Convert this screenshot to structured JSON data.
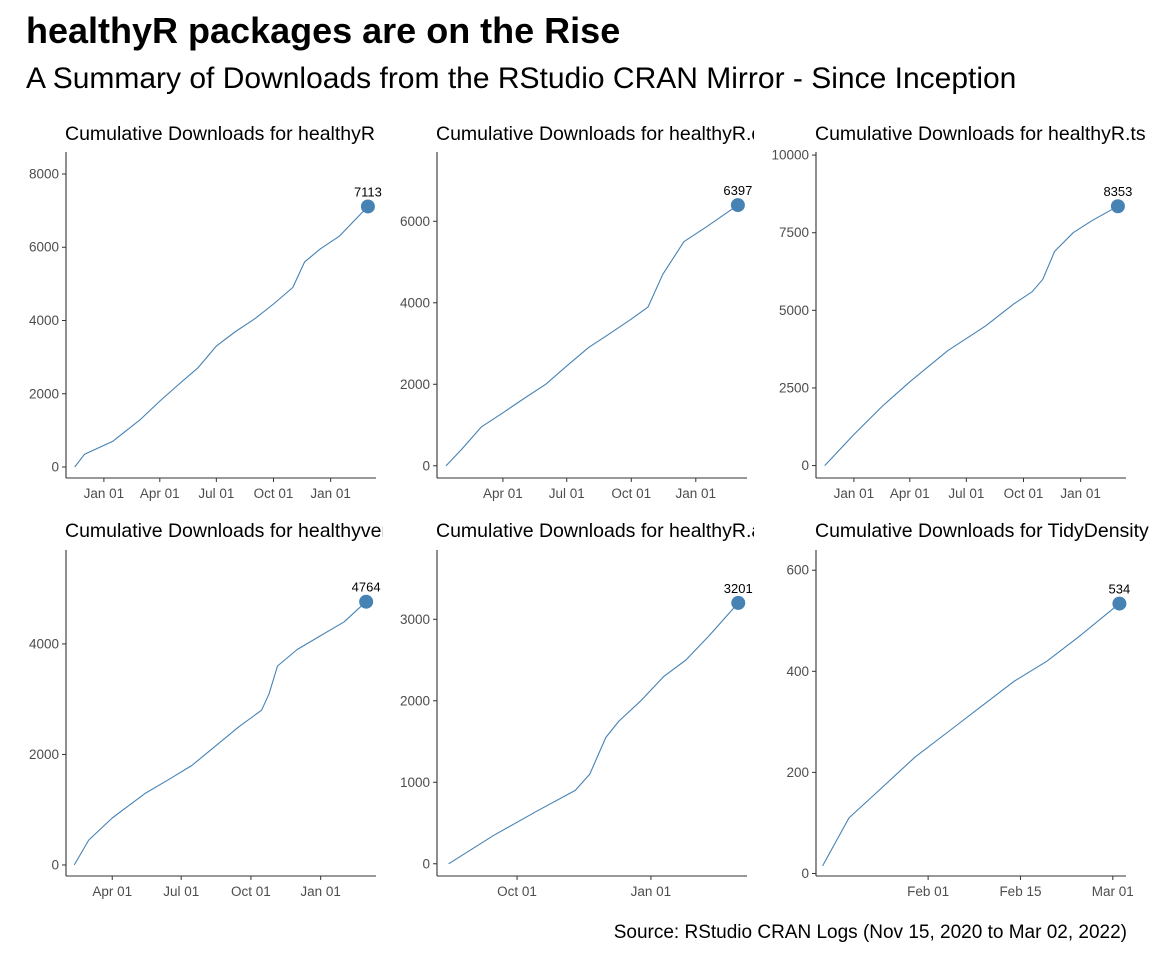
{
  "title": "healthyR packages are on the Rise",
  "subtitle": "A Summary of Downloads from the RStudio CRAN Mirror - Since Inception",
  "caption": "Source: RStudio CRAN Logs (Nov 15, 2020 to Mar 02, 2022)",
  "colors": {
    "line": "#4682b4",
    "point": "#4682b4",
    "axis": "#333333",
    "tick_text": "#4d4d4d"
  },
  "chart_data": [
    {
      "type": "line",
      "title": "Cumulative Downloads for healthyR",
      "x": [
        "2020-11-15",
        "2020-12-01",
        "2021-01-15",
        "2021-03-01",
        "2021-04-01",
        "2021-05-01",
        "2021-06-01",
        "2021-07-01",
        "2021-08-01",
        "2021-09-01",
        "2021-10-01",
        "2021-11-01",
        "2021-11-20",
        "2021-12-15",
        "2022-01-15",
        "2022-03-02"
      ],
      "y": [
        0,
        350,
        700,
        1300,
        1800,
        2250,
        2700,
        3300,
        3700,
        4050,
        4450,
        4900,
        5600,
        5950,
        6300,
        7113
      ],
      "xlim": [
        "2020-11-01",
        "2022-03-15"
      ],
      "xticks": [
        "2021-01-01",
        "2021-04-01",
        "2021-07-01",
        "2021-10-01",
        "2022-01-01"
      ],
      "xtick_labels": [
        "Jan 01",
        "Apr 01",
        "Jul 01",
        "Oct 01",
        "Jan 01"
      ],
      "ylim": [
        -300,
        8600
      ],
      "yticks": [
        0,
        2000,
        4000,
        6000,
        8000
      ],
      "end_label": "7113"
    },
    {
      "type": "line",
      "title": "Cumulative Downloads for healthyR.data",
      "x": [
        "2021-01-10",
        "2021-02-01",
        "2021-03-01",
        "2021-04-01",
        "2021-05-01",
        "2021-06-01",
        "2021-07-01",
        "2021-08-01",
        "2021-09-01",
        "2021-10-01",
        "2021-10-25",
        "2021-11-15",
        "2021-12-15",
        "2022-01-15",
        "2022-03-02"
      ],
      "y": [
        0,
        400,
        950,
        1300,
        1650,
        2000,
        2450,
        2900,
        3250,
        3600,
        3900,
        4700,
        5500,
        5850,
        6397
      ],
      "xlim": [
        "2020-12-28",
        "2022-03-15"
      ],
      "xticks": [
        "2021-04-01",
        "2021-07-01",
        "2021-10-01",
        "2022-01-01"
      ],
      "xtick_labels": [
        "Apr 01",
        "Jul 01",
        "Oct 01",
        "Jan 01"
      ],
      "ylim": [
        -300,
        7700
      ],
      "yticks": [
        0,
        2000,
        4000,
        6000
      ],
      "end_label": "6397"
    },
    {
      "type": "line",
      "title": "Cumulative Downloads for healthyR.ts",
      "x": [
        "2020-11-15",
        "2021-01-01",
        "2021-02-15",
        "2021-04-01",
        "2021-06-01",
        "2021-08-01",
        "2021-09-15",
        "2021-10-15",
        "2021-11-01",
        "2021-11-20",
        "2021-12-20",
        "2022-01-20",
        "2022-03-02"
      ],
      "y": [
        0,
        1000,
        1900,
        2700,
        3700,
        4500,
        5200,
        5600,
        6000,
        6900,
        7500,
        7900,
        8353
      ],
      "xlim": [
        "2020-11-01",
        "2022-03-15"
      ],
      "xticks": [
        "2021-01-01",
        "2021-04-01",
        "2021-07-01",
        "2021-10-01",
        "2022-01-01"
      ],
      "xtick_labels": [
        "Jan 01",
        "Apr 01",
        "Jul 01",
        "Oct 01",
        "Jan 01"
      ],
      "ylim": [
        -400,
        10100
      ],
      "yticks": [
        0,
        2500,
        5000,
        7500,
        10000
      ],
      "end_label": "8353"
    },
    {
      "type": "line",
      "title": "Cumulative Downloads for healthyverse",
      "x": [
        "2021-02-10",
        "2021-03-01",
        "2021-04-01",
        "2021-05-15",
        "2021-06-15",
        "2021-07-15",
        "2021-08-15",
        "2021-09-15",
        "2021-10-15",
        "2021-10-25",
        "2021-11-05",
        "2021-12-01",
        "2022-01-01",
        "2022-02-01",
        "2022-03-02"
      ],
      "y": [
        0,
        450,
        850,
        1300,
        1550,
        1800,
        2150,
        2500,
        2800,
        3100,
        3600,
        3900,
        4150,
        4400,
        4764
      ],
      "xlim": [
        "2021-01-30",
        "2022-03-15"
      ],
      "xticks": [
        "2021-04-01",
        "2021-07-01",
        "2021-10-01",
        "2022-01-01"
      ],
      "xtick_labels": [
        "Apr 01",
        "Jul 01",
        "Oct 01",
        "Jan 01"
      ],
      "ylim": [
        -200,
        5700
      ],
      "yticks": [
        0,
        2000,
        4000
      ],
      "end_label": "4764"
    },
    {
      "type": "line",
      "title": "Cumulative Downloads for healthyR.ai",
      "x": [
        "2021-08-15",
        "2021-09-15",
        "2021-10-15",
        "2021-11-10",
        "2021-11-20",
        "2021-12-01",
        "2021-12-10",
        "2021-12-25",
        "2022-01-10",
        "2022-01-25",
        "2022-02-10",
        "2022-03-02"
      ],
      "y": [
        0,
        350,
        650,
        900,
        1100,
        1550,
        1750,
        2000,
        2300,
        2500,
        2800,
        3201
      ],
      "xlim": [
        "2021-08-07",
        "2022-03-08"
      ],
      "xticks": [
        "2021-10-01",
        "2022-01-01"
      ],
      "xtick_labels": [
        "Oct 01",
        "Jan 01"
      ],
      "ylim": [
        -150,
        3850
      ],
      "yticks": [
        0,
        1000,
        2000,
        3000
      ],
      "end_label": "3201"
    },
    {
      "type": "line",
      "title": "Cumulative Downloads for TidyDensity",
      "x": [
        "2022-01-16",
        "2022-01-20",
        "2022-01-25",
        "2022-01-30",
        "2022-02-04",
        "2022-02-09",
        "2022-02-14",
        "2022-02-19",
        "2022-02-24",
        "2022-03-02"
      ],
      "y": [
        15,
        110,
        170,
        230,
        280,
        330,
        380,
        420,
        470,
        534
      ],
      "xlim": [
        "2022-01-15",
        "2022-03-03"
      ],
      "xticks": [
        "2022-02-01",
        "2022-02-15",
        "2022-03-01"
      ],
      "xtick_labels": [
        "Feb 01",
        "Feb 15",
        "Mar 01"
      ],
      "ylim": [
        -5,
        640
      ],
      "yticks": [
        0,
        200,
        400,
        600
      ],
      "end_label": "534"
    }
  ]
}
